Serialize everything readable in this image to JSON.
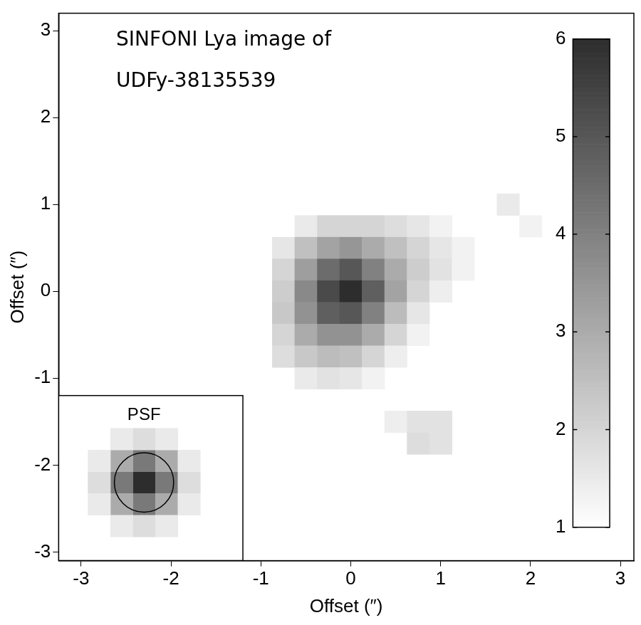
{
  "chart_data": {
    "type": "heatmap",
    "annotation": [
      "SINFONI Lya image of",
      "UDFy-38135539"
    ],
    "x_label": "Offset (″)",
    "y_label": "Offset (″)",
    "xlim": [
      -3.25,
      3.15
    ],
    "ylim": [
      -3.1,
      3.2
    ],
    "xticks": [
      -3,
      -2,
      -1,
      0,
      1,
      2,
      3
    ],
    "yticks": [
      -3,
      -2,
      -1,
      0,
      1,
      2,
      3
    ],
    "grid": false,
    "cell_size": 0.25,
    "cells": [
      [
        -0.5,
        0.75,
        1.5
      ],
      [
        -0.25,
        0.75,
        2
      ],
      [
        0,
        0.75,
        2
      ],
      [
        0.25,
        0.75,
        2
      ],
      [
        0.5,
        0.75,
        1.8
      ],
      [
        0.75,
        0.75,
        1.6
      ],
      [
        1.0,
        0.75,
        1.3
      ],
      [
        -0.75,
        0.5,
        1.6
      ],
      [
        -0.5,
        0.5,
        2.5
      ],
      [
        -0.25,
        0.5,
        3.2
      ],
      [
        0,
        0.5,
        3.5
      ],
      [
        0.25,
        0.5,
        3
      ],
      [
        0.5,
        0.5,
        2.5
      ],
      [
        0.75,
        0.5,
        2
      ],
      [
        1.0,
        0.5,
        1.6
      ],
      [
        1.25,
        0.5,
        1.3
      ],
      [
        -0.75,
        0.25,
        2
      ],
      [
        -0.5,
        0.25,
        3.3
      ],
      [
        -0.25,
        0.25,
        4.5
      ],
      [
        0,
        0.25,
        5
      ],
      [
        0.25,
        0.25,
        4
      ],
      [
        0.5,
        0.25,
        3
      ],
      [
        0.75,
        0.25,
        2.2
      ],
      [
        1.0,
        0.25,
        1.7
      ],
      [
        1.25,
        0.25,
        1.3
      ],
      [
        -0.75,
        0,
        2.2
      ],
      [
        -0.5,
        0,
        3.8
      ],
      [
        -0.25,
        0,
        5.3
      ],
      [
        0,
        0,
        6
      ],
      [
        0.25,
        0,
        4.8
      ],
      [
        0.5,
        0,
        3.2
      ],
      [
        0.75,
        0,
        2
      ],
      [
        1.0,
        0,
        1.4
      ],
      [
        -0.75,
        -0.25,
        2.3
      ],
      [
        -0.5,
        -0.25,
        3.6
      ],
      [
        -0.25,
        -0.25,
        4.8
      ],
      [
        0,
        -0.25,
        5
      ],
      [
        0.25,
        -0.25,
        4
      ],
      [
        0.5,
        -0.25,
        2.6
      ],
      [
        0.75,
        -0.25,
        1.6
      ],
      [
        -0.75,
        -0.5,
        2
      ],
      [
        -0.5,
        -0.5,
        3
      ],
      [
        -0.25,
        -0.5,
        3.6
      ],
      [
        0,
        -0.5,
        3.6
      ],
      [
        0.25,
        -0.5,
        3
      ],
      [
        0.5,
        -0.5,
        2
      ],
      [
        0.75,
        -0.5,
        1.3
      ],
      [
        -0.75,
        -0.75,
        1.8
      ],
      [
        -0.5,
        -0.75,
        2.3
      ],
      [
        -0.25,
        -0.75,
        2.6
      ],
      [
        0,
        -0.75,
        2.5
      ],
      [
        0.25,
        -0.75,
        2
      ],
      [
        0.5,
        -0.75,
        1.4
      ],
      [
        -0.5,
        -1.0,
        1.5
      ],
      [
        -0.25,
        -1.0,
        1.7
      ],
      [
        0,
        -1.0,
        1.6
      ],
      [
        0.25,
        -1.0,
        1.3
      ],
      [
        0.5,
        -1.5,
        1.4
      ],
      [
        0.75,
        -1.5,
        1.7
      ],
      [
        1.0,
        -1.5,
        1.7
      ],
      [
        0.75,
        -1.75,
        1.8
      ],
      [
        1.0,
        -1.75,
        1.7
      ],
      [
        1.75,
        1.0,
        1.5
      ],
      [
        2.0,
        0.75,
        1.3
      ]
    ],
    "psf": {
      "label": "PSF",
      "inset_xlim": [
        -3.25,
        -1.2
      ],
      "inset_ylim": [
        -3.1,
        -1.2
      ],
      "circle": {
        "x": -2.3,
        "y": -2.2,
        "radius": 0.33
      },
      "cells": [
        [
          -2.3,
          -2.2,
          6
        ],
        [
          -2.05,
          -2.2,
          4.2
        ],
        [
          -2.55,
          -2.2,
          4.2
        ],
        [
          -2.3,
          -1.95,
          4.2
        ],
        [
          -2.3,
          -2.45,
          4.2
        ],
        [
          -2.05,
          -1.95,
          3
        ],
        [
          -2.55,
          -1.95,
          3
        ],
        [
          -2.05,
          -2.45,
          3
        ],
        [
          -2.55,
          -2.45,
          3
        ],
        [
          -1.8,
          -2.2,
          1.8
        ],
        [
          -2.8,
          -2.2,
          1.8
        ],
        [
          -2.3,
          -1.7,
          1.8
        ],
        [
          -2.3,
          -2.7,
          1.8
        ],
        [
          -1.8,
          -1.95,
          1.5
        ],
        [
          -1.8,
          -2.45,
          1.5
        ],
        [
          -2.8,
          -1.95,
          1.5
        ],
        [
          -2.8,
          -2.45,
          1.5
        ],
        [
          -2.05,
          -1.7,
          1.5
        ],
        [
          -2.55,
          -1.7,
          1.5
        ],
        [
          -2.05,
          -2.7,
          1.5
        ],
        [
          -2.55,
          -2.7,
          1.5
        ]
      ]
    },
    "colorbar": {
      "range": [
        1,
        6
      ],
      "ticks": [
        1,
        2,
        3,
        4,
        5,
        6
      ]
    }
  }
}
